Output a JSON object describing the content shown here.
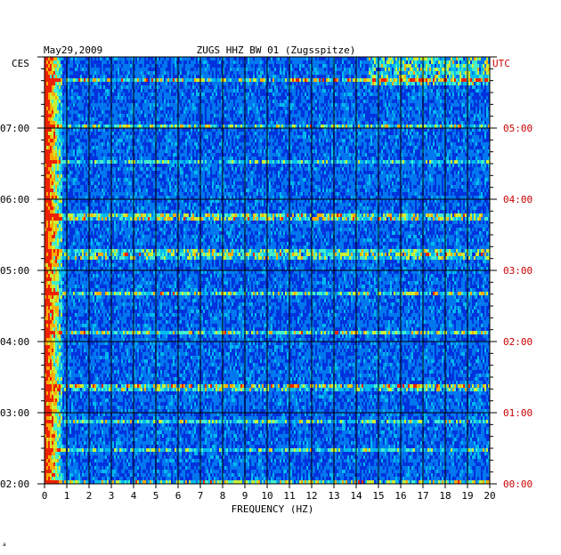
{
  "chart_data": {
    "type": "heatmap",
    "date": "May29,2009",
    "title": "ZUGS HHZ BW 01 (Zugsspitze)",
    "xlabel": "FREQUENCY (HZ)",
    "left_axis_label": "CES",
    "right_axis_label": "UTC",
    "xlim": [
      0,
      20
    ],
    "x_ticks": [
      "0",
      "1",
      "2",
      "3",
      "4",
      "5",
      "6",
      "7",
      "8",
      "9",
      "10",
      "11",
      "12",
      "13",
      "14",
      "15",
      "16",
      "17",
      "18",
      "19",
      "20"
    ],
    "left_ticks": [
      "02:00",
      "03:00",
      "04:00",
      "05:00",
      "06:00",
      "07:00"
    ],
    "right_ticks": [
      "00:00",
      "01:00",
      "02:00",
      "03:00",
      "04:00",
      "05:00"
    ],
    "time_range_utc": [
      "00:00",
      "05:35"
    ],
    "grid": true,
    "colormap": [
      "#0000aa",
      "#0033dd",
      "#0077ee",
      "#00bbee",
      "#44eecc",
      "#ccee33",
      "#ffaa00",
      "#ee2200"
    ]
  },
  "footer_mark": "a"
}
